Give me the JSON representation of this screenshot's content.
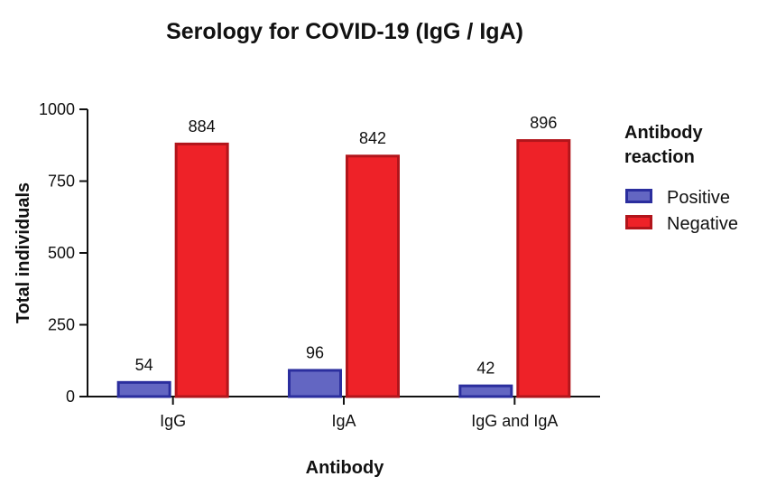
{
  "chart_data": {
    "type": "bar",
    "title": "Serology for COVID-19 (IgG / IgA)",
    "xlabel": "Antibody",
    "ylabel": "Total individuals",
    "categories": [
      "IgG",
      "IgA",
      "IgG and IgA"
    ],
    "ylim": [
      0,
      1000
    ],
    "yticks": [
      0,
      250,
      500,
      750,
      1000
    ],
    "legend_title": [
      "Antibody",
      "reaction"
    ],
    "legend_position": "right",
    "grid": false,
    "series": [
      {
        "name": "Positive",
        "values": [
          54,
          96,
          42
        ],
        "color": "#6366c2",
        "stroke": "#2b2e9e"
      },
      {
        "name": "Negative",
        "values": [
          884,
          842,
          896
        ],
        "color": "#ee2228",
        "stroke": "#b2151b"
      }
    ]
  }
}
